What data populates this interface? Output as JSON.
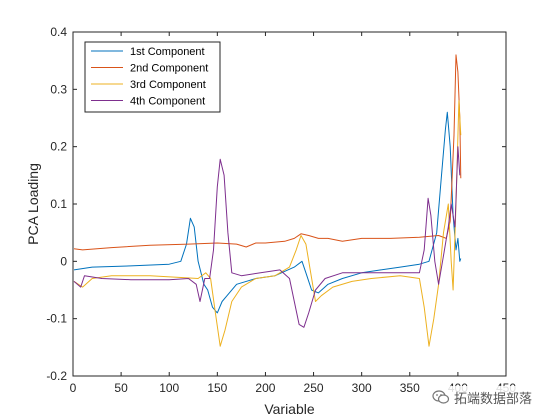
{
  "chart_data": {
    "type": "line",
    "title": "",
    "xlabel": "Variable",
    "ylabel": "PCA Loading",
    "xlim": [
      0,
      450
    ],
    "ylim": [
      -0.2,
      0.4
    ],
    "xticks": [
      0,
      50,
      100,
      150,
      200,
      250,
      300,
      350,
      400,
      450
    ],
    "yticks": [
      -0.2,
      -0.1,
      0,
      0.1,
      0.2,
      0.3,
      0.4
    ],
    "xtick_labels": [
      "0",
      "50",
      "100",
      "150",
      "200",
      "250",
      "300",
      "350",
      "400",
      "450"
    ],
    "ytick_labels": [
      "-0.2",
      "-0.1",
      "0",
      "0.1",
      "0.2",
      "0.3",
      "0.4"
    ],
    "grid": false,
    "legend_position": "top-left",
    "series": [
      {
        "name": "1st Component",
        "color": "#0072BD",
        "points": [
          [
            1,
            -0.015
          ],
          [
            20,
            -0.01
          ],
          [
            60,
            -0.008
          ],
          [
            100,
            -0.005
          ],
          [
            112,
            0.0
          ],
          [
            118,
            0.03
          ],
          [
            122,
            0.075
          ],
          [
            126,
            0.06
          ],
          [
            130,
            0.0
          ],
          [
            136,
            -0.04
          ],
          [
            140,
            -0.05
          ],
          [
            145,
            -0.08
          ],
          [
            150,
            -0.09
          ],
          [
            155,
            -0.07
          ],
          [
            160,
            -0.06
          ],
          [
            170,
            -0.04
          ],
          [
            190,
            -0.03
          ],
          [
            210,
            -0.025
          ],
          [
            230,
            -0.01
          ],
          [
            238,
            0.0
          ],
          [
            242,
            -0.02
          ],
          [
            248,
            -0.05
          ],
          [
            255,
            -0.055
          ],
          [
            265,
            -0.04
          ],
          [
            280,
            -0.03
          ],
          [
            300,
            -0.02
          ],
          [
            320,
            -0.015
          ],
          [
            340,
            -0.01
          ],
          [
            360,
            -0.005
          ],
          [
            370,
            0.0
          ],
          [
            378,
            0.05
          ],
          [
            383,
            0.15
          ],
          [
            387,
            0.23
          ],
          [
            389,
            0.26
          ],
          [
            392,
            0.2
          ],
          [
            395,
            0.08
          ],
          [
            398,
            0.02
          ],
          [
            400,
            0.04
          ],
          [
            402,
            0.0
          ],
          [
            403,
            0.005
          ]
        ]
      },
      {
        "name": "2nd Component",
        "color": "#D95319",
        "points": [
          [
            1,
            0.022
          ],
          [
            10,
            0.02
          ],
          [
            40,
            0.024
          ],
          [
            80,
            0.028
          ],
          [
            120,
            0.03
          ],
          [
            150,
            0.032
          ],
          [
            170,
            0.03
          ],
          [
            180,
            0.025
          ],
          [
            190,
            0.032
          ],
          [
            200,
            0.032
          ],
          [
            220,
            0.035
          ],
          [
            230,
            0.04
          ],
          [
            237,
            0.048
          ],
          [
            245,
            0.045
          ],
          [
            255,
            0.04
          ],
          [
            265,
            0.04
          ],
          [
            280,
            0.035
          ],
          [
            300,
            0.04
          ],
          [
            330,
            0.04
          ],
          [
            360,
            0.042
          ],
          [
            380,
            0.045
          ],
          [
            388,
            0.04
          ],
          [
            392,
            0.07
          ],
          [
            396,
            0.22
          ],
          [
            398,
            0.36
          ],
          [
            400,
            0.33
          ],
          [
            402,
            0.25
          ],
          [
            403,
            0.145
          ]
        ]
      },
      {
        "name": "3rd Component",
        "color": "#EDB120",
        "points": [
          [
            1,
            -0.035
          ],
          [
            10,
            -0.045
          ],
          [
            20,
            -0.03
          ],
          [
            40,
            -0.025
          ],
          [
            80,
            -0.025
          ],
          [
            110,
            -0.028
          ],
          [
            130,
            -0.03
          ],
          [
            138,
            -0.02
          ],
          [
            143,
            -0.03
          ],
          [
            148,
            -0.09
          ],
          [
            153,
            -0.148
          ],
          [
            158,
            -0.12
          ],
          [
            165,
            -0.07
          ],
          [
            175,
            -0.045
          ],
          [
            190,
            -0.03
          ],
          [
            210,
            -0.025
          ],
          [
            225,
            -0.01
          ],
          [
            232,
            0.02
          ],
          [
            237,
            0.045
          ],
          [
            242,
            0.03
          ],
          [
            247,
            -0.02
          ],
          [
            252,
            -0.07
          ],
          [
            258,
            -0.06
          ],
          [
            270,
            -0.045
          ],
          [
            290,
            -0.035
          ],
          [
            310,
            -0.03
          ],
          [
            340,
            -0.025
          ],
          [
            360,
            -0.03
          ],
          [
            365,
            -0.08
          ],
          [
            370,
            -0.148
          ],
          [
            375,
            -0.1
          ],
          [
            380,
            -0.04
          ],
          [
            385,
            0.05
          ],
          [
            390,
            0.1
          ],
          [
            393,
            0.0
          ],
          [
            395,
            -0.05
          ],
          [
            398,
            0.1
          ],
          [
            401,
            0.28
          ],
          [
            403,
            0.22
          ]
        ]
      },
      {
        "name": "4th Component",
        "color": "#7E2F8E",
        "points": [
          [
            1,
            -0.035
          ],
          [
            8,
            -0.045
          ],
          [
            12,
            -0.025
          ],
          [
            30,
            -0.03
          ],
          [
            60,
            -0.032
          ],
          [
            100,
            -0.032
          ],
          [
            120,
            -0.03
          ],
          [
            128,
            -0.04
          ],
          [
            132,
            -0.07
          ],
          [
            137,
            -0.03
          ],
          [
            142,
            -0.03
          ],
          [
            146,
            0.02
          ],
          [
            150,
            0.13
          ],
          [
            153,
            0.178
          ],
          [
            157,
            0.15
          ],
          [
            161,
            0.05
          ],
          [
            165,
            -0.02
          ],
          [
            175,
            -0.025
          ],
          [
            195,
            -0.02
          ],
          [
            215,
            -0.015
          ],
          [
            225,
            -0.03
          ],
          [
            230,
            -0.07
          ],
          [
            235,
            -0.11
          ],
          [
            240,
            -0.115
          ],
          [
            245,
            -0.09
          ],
          [
            252,
            -0.05
          ],
          [
            262,
            -0.03
          ],
          [
            280,
            -0.02
          ],
          [
            300,
            -0.02
          ],
          [
            320,
            -0.02
          ],
          [
            340,
            -0.02
          ],
          [
            360,
            -0.02
          ],
          [
            365,
            0.02
          ],
          [
            369,
            0.11
          ],
          [
            372,
            0.08
          ],
          [
            376,
            0.0
          ],
          [
            380,
            -0.04
          ],
          [
            385,
            0.01
          ],
          [
            390,
            0.06
          ],
          [
            393,
            0.1
          ],
          [
            397,
            0.06
          ],
          [
            400,
            0.2
          ],
          [
            402,
            0.15
          ]
        ]
      }
    ]
  },
  "watermark": {
    "text": "拓端数据部落",
    "icon": "wechat-logo-icon"
  }
}
